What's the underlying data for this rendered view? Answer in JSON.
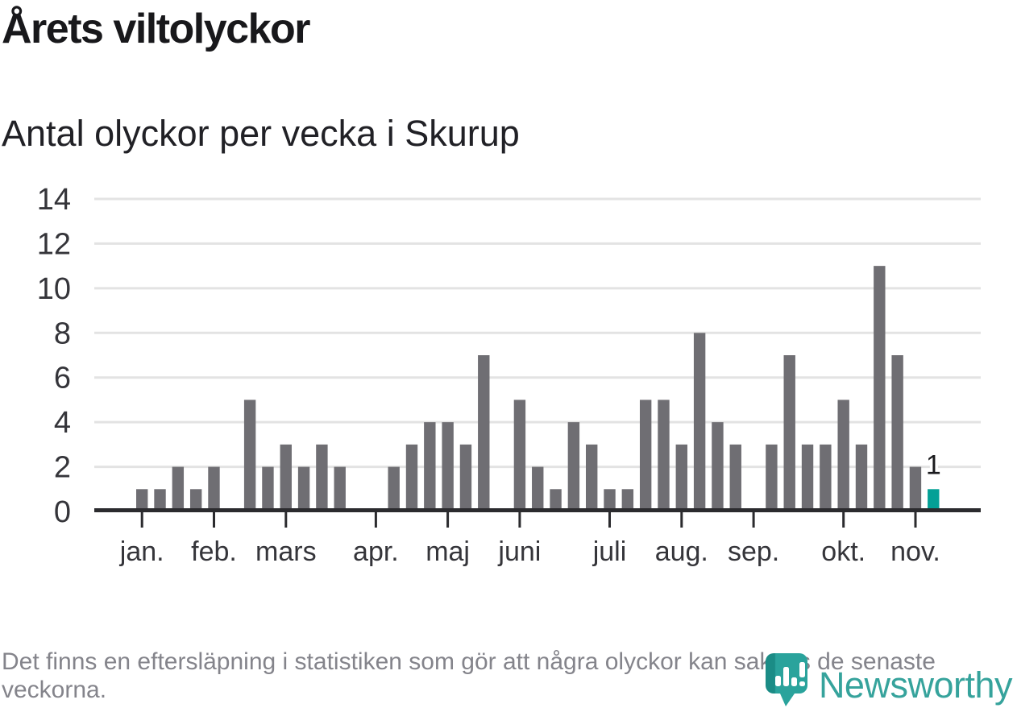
{
  "title": "Årets viltolyckor",
  "subtitle": "Antal olyckor per vecka i Skurup",
  "footer": {
    "note": "Det finns en eftersläpning i statistiken som gör att några olyckor kan saknas de senaste veckorna."
  },
  "branding": {
    "name": "Newsworthy",
    "icon": "newsworthy-pin-icon",
    "color": "#36a39c"
  },
  "colors": {
    "bar": "#6f6e73",
    "highlight": "#04a096",
    "axis": "#2b2b2e",
    "grid": "#e3e3e3",
    "tick_label": "#35353a",
    "footnote_text": "#84848b",
    "logo_pin": "#2aa39c",
    "logo_pin_dark": "#1b8c86"
  },
  "chart_data": {
    "type": "bar",
    "title": "Årets viltolyckor",
    "subtitle": "Antal olyckor per vecka i Skurup",
    "x_unit": "vecka",
    "first_week": 1,
    "values": [
      1,
      1,
      2,
      1,
      2,
      0,
      5,
      2,
      3,
      2,
      3,
      2,
      0,
      0,
      2,
      3,
      4,
      4,
      3,
      7,
      0,
      5,
      2,
      1,
      4,
      3,
      1,
      1,
      5,
      5,
      3,
      8,
      4,
      3,
      0,
      3,
      7,
      3,
      3,
      5,
      3,
      11,
      7,
      2,
      1
    ],
    "ylim": [
      0,
      14
    ],
    "yticks": [
      0,
      2,
      4,
      6,
      8,
      10,
      12,
      14
    ],
    "grid": true,
    "legend": "none",
    "month_ticks": [
      {
        "label": "jan.",
        "week": 1
      },
      {
        "label": "feb.",
        "week": 5
      },
      {
        "label": "mars",
        "week": 9
      },
      {
        "label": "apr.",
        "week": 14
      },
      {
        "label": "maj",
        "week": 18
      },
      {
        "label": "juni",
        "week": 22
      },
      {
        "label": "juli",
        "week": 27
      },
      {
        "label": "aug.",
        "week": 31
      },
      {
        "label": "sep.",
        "week": 35
      },
      {
        "label": "okt.",
        "week": 40
      },
      {
        "label": "nov.",
        "week": 44
      }
    ],
    "highlight": {
      "week": 45,
      "value": 1,
      "label": "1"
    }
  }
}
